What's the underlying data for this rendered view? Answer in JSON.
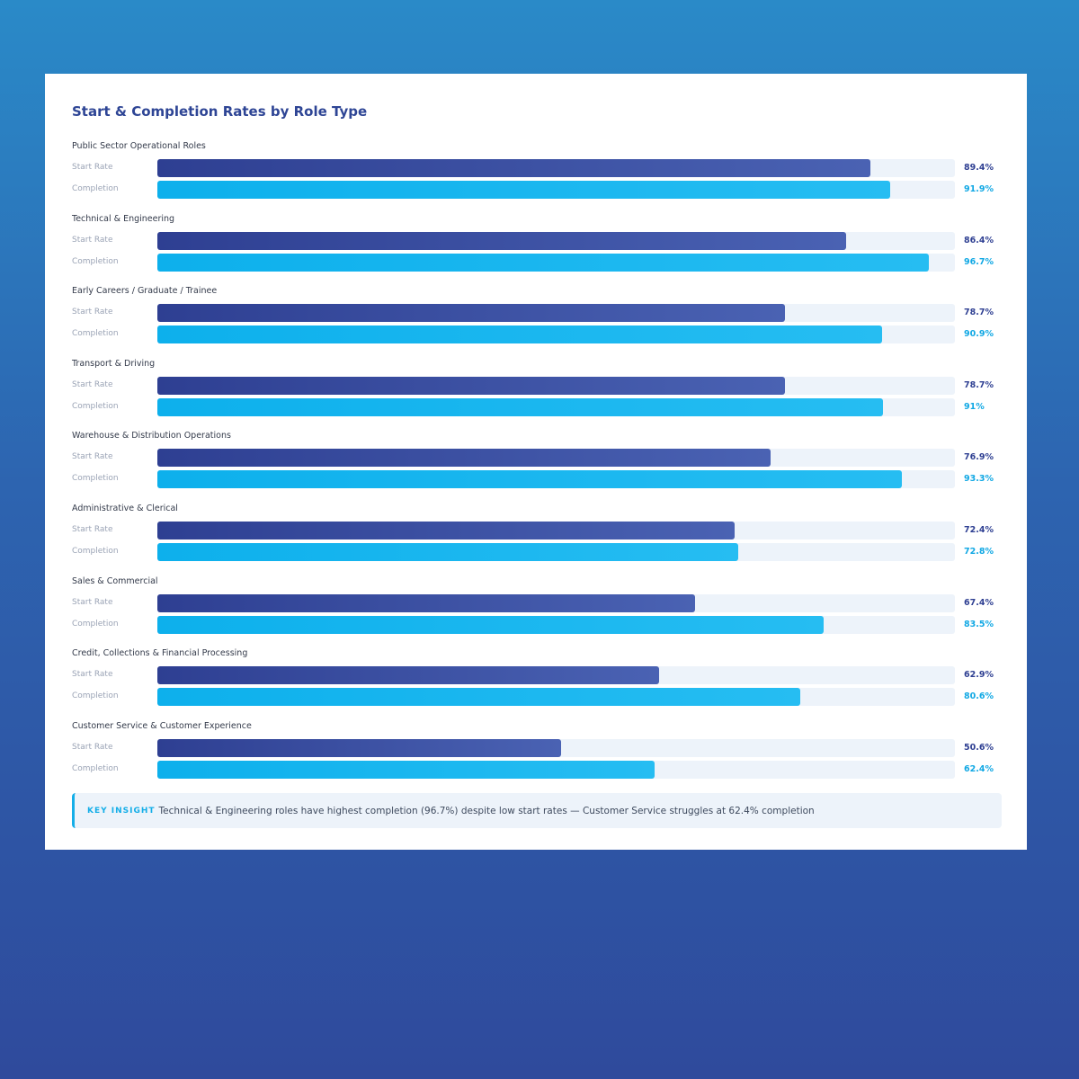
{
  "chart_data": {
    "type": "bar",
    "orientation": "horizontal",
    "title": "Start & Completion Rates by Role Type",
    "xlim": [
      0,
      100
    ],
    "grid": false,
    "categories": [
      "Public Sector Operational Roles",
      "Technical & Engineering",
      "Early Careers / Graduate / Trainee",
      "Transport & Driving",
      "Warehouse & Distribution Operations",
      "Administrative & Clerical",
      "Sales & Commercial",
      "Credit, Collections & Financial Processing",
      "Customer Service & Customer Experience"
    ],
    "series": [
      {
        "name": "Start Rate",
        "color": "#2e3f92",
        "values": [
          89.4,
          86.4,
          78.7,
          78.7,
          76.9,
          72.4,
          67.4,
          62.9,
          50.6
        ],
        "labels": [
          "89.4%",
          "86.4%",
          "78.7%",
          "78.7%",
          "76.9%",
          "72.4%",
          "67.4%",
          "62.9%",
          "50.6%"
        ]
      },
      {
        "name": "Completion",
        "color": "#11a8e4",
        "values": [
          91.9,
          96.7,
          90.9,
          91,
          93.3,
          72.8,
          83.5,
          80.6,
          62.4
        ],
        "labels": [
          "91.9%",
          "96.7%",
          "90.9%",
          "91%",
          "93.3%",
          "72.8%",
          "83.5%",
          "80.6%",
          "62.4%"
        ]
      }
    ]
  },
  "insight": {
    "tag": "KEY INSIGHT",
    "text": "Technical & Engineering roles have highest completion (96.7%) despite low start rates — Customer Service struggles at 62.4% completion"
  }
}
